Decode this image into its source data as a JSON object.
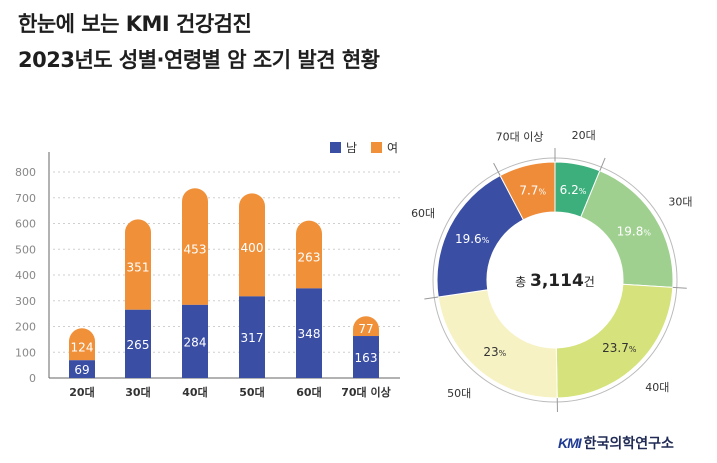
{
  "title": {
    "line1": "한눈에 보는 KMI 건강검진",
    "line2": "2023년도 성별·연령별 암 조기 발견 현황"
  },
  "logo": {
    "brand": "KMI",
    "name": "한국의학연구소"
  },
  "chart_data": [
    {
      "type": "bar",
      "stacked": true,
      "categories": [
        "20대",
        "30대",
        "40대",
        "50대",
        "60대",
        "70대 이상"
      ],
      "series": [
        {
          "name": "남",
          "color": "#3a4ea3",
          "values": [
            69,
            265,
            284,
            317,
            348,
            163
          ]
        },
        {
          "name": "여",
          "color": "#f0913a",
          "values": [
            124,
            351,
            453,
            400,
            263,
            77
          ]
        }
      ],
      "yticks": [
        0,
        100,
        200,
        300,
        400,
        500,
        600,
        700,
        800
      ],
      "ylim": [
        0,
        800
      ],
      "grid": true,
      "legend": "top-right"
    },
    {
      "type": "pie",
      "donut": true,
      "center_label": {
        "prefix": "총",
        "value": "3,114",
        "suffix": "건"
      },
      "categories": [
        "20대",
        "30대",
        "40대",
        "50대",
        "60대",
        "70대 이상"
      ],
      "values": [
        6.2,
        19.8,
        23.7,
        23,
        19.6,
        7.7
      ],
      "labels": [
        "6.2",
        "19.8",
        "23.7",
        "23",
        "19.6",
        "7.7"
      ],
      "unit": "%",
      "colors": [
        "#3daf7c",
        "#9fd08f",
        "#d6e27b",
        "#f7f2c4",
        "#3a4ea3",
        "#ef8c3a"
      ]
    }
  ]
}
